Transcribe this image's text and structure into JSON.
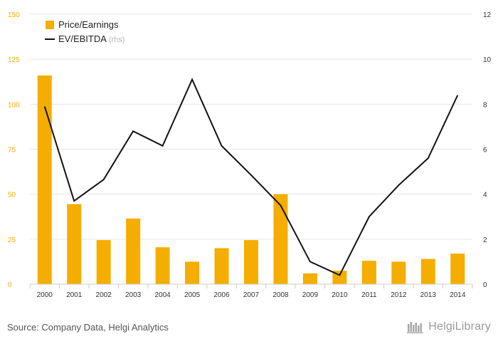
{
  "colors": {
    "bar": "#f5ad00",
    "line": "#111111",
    "left_axis_text": "#f5ad00",
    "right_axis_text": "#333333",
    "grid": "#e6e6e6",
    "rhs_note": "#b5b5b5"
  },
  "chart_data": {
    "type": "bar",
    "categories": [
      "2000",
      "2001",
      "2002",
      "2003",
      "2004",
      "2005",
      "2006",
      "2007",
      "2008",
      "2009",
      "2010",
      "2011",
      "2012",
      "2013",
      "2014"
    ],
    "series": [
      {
        "name": "Price/Earnings",
        "type": "bar",
        "axis": "left",
        "values": [
          116,
          44.5,
          24.5,
          36.5,
          20.5,
          12.5,
          20,
          24.5,
          50,
          6,
          7.5,
          13,
          12.5,
          14,
          17
        ]
      },
      {
        "name": "EV/EBITDA",
        "name_suffix": "(rhs)",
        "type": "line",
        "axis": "right",
        "values": [
          7.9,
          3.7,
          4.65,
          6.8,
          6.15,
          9.1,
          6.15,
          4.85,
          3.5,
          1.0,
          0.4,
          3.0,
          4.4,
          5.6,
          8.4
        ]
      }
    ],
    "left_axis": {
      "ticks": [
        0,
        25,
        50,
        75,
        100,
        125,
        150
      ],
      "ylim": [
        0,
        150
      ]
    },
    "right_axis": {
      "ticks": [
        0,
        2,
        4,
        6,
        8,
        10,
        12
      ],
      "ylim": [
        0,
        12
      ]
    },
    "grid": true,
    "legend_position": "top-left"
  },
  "footer": {
    "source": "Source: Company Data, Helgi Analytics",
    "brand": "HelgiLibrary",
    "brand_icon": "library-books-icon"
  }
}
